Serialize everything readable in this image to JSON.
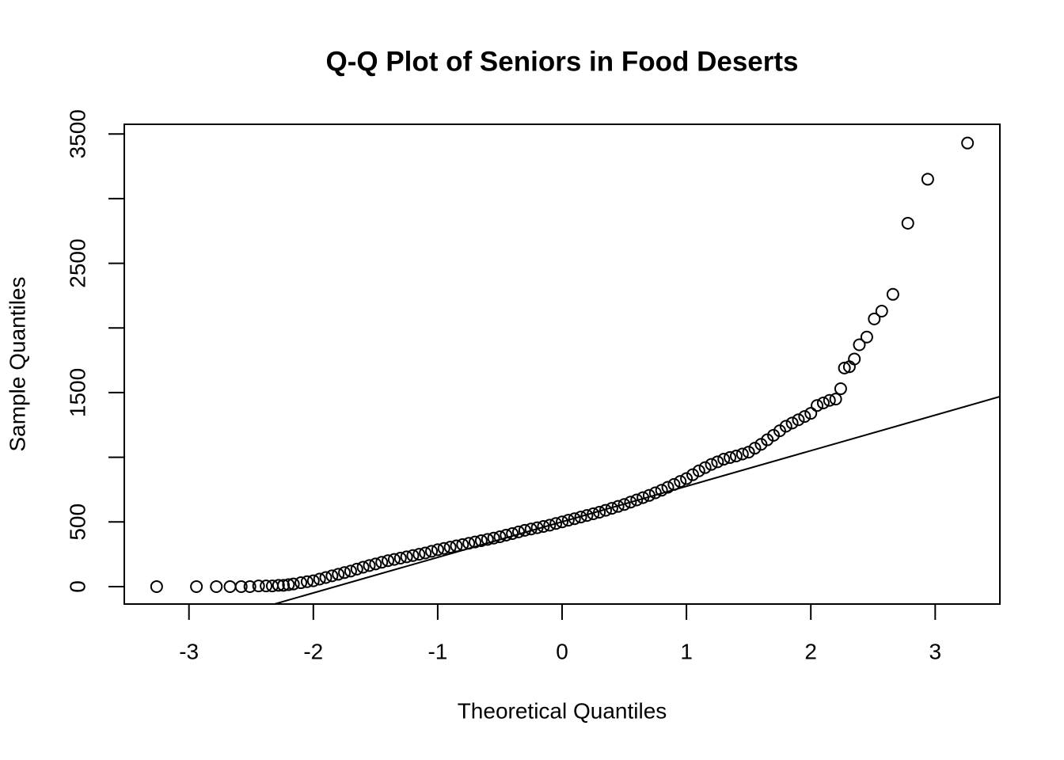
{
  "chart_data": {
    "type": "scatter",
    "title": "Q-Q Plot of Seniors in Food Deserts",
    "x_label": "Theoretical Quantiles",
    "y_label": "Sample Quantiles",
    "xlim": [
      -3.52,
      3.52
    ],
    "ylim": [
      -135,
      3575
    ],
    "xticks": [
      -3,
      -2,
      -1,
      0,
      1,
      2,
      3
    ],
    "yticks": [
      0,
      500,
      1500,
      2500,
      3500
    ],
    "yticks_unlabeled": [
      1000,
      2000,
      3000
    ],
    "color": "#000000",
    "x": [
      -3.26,
      -2.94,
      -2.78,
      -2.67,
      -2.58,
      -2.51,
      -2.44,
      -2.38,
      -2.33,
      -2.28,
      -2.24,
      -2.2,
      -2.16,
      -2.1,
      -2.05,
      -2.0,
      -1.95,
      -1.9,
      -1.85,
      -1.8,
      -1.75,
      -1.7,
      -1.65,
      -1.6,
      -1.55,
      -1.5,
      -1.45,
      -1.4,
      -1.35,
      -1.3,
      -1.25,
      -1.2,
      -1.15,
      -1.1,
      -1.05,
      -1.0,
      -0.95,
      -0.9,
      -0.85,
      -0.8,
      -0.75,
      -0.7,
      -0.65,
      -0.6,
      -0.55,
      -0.5,
      -0.45,
      -0.4,
      -0.35,
      -0.3,
      -0.25,
      -0.2,
      -0.15,
      -0.1,
      -0.05,
      0,
      0.05,
      0.1,
      0.15,
      0.2,
      0.25,
      0.3,
      0.35,
      0.4,
      0.45,
      0.5,
      0.55,
      0.6,
      0.65,
      0.7,
      0.75,
      0.8,
      0.85,
      0.9,
      0.95,
      1.0,
      1.05,
      1.1,
      1.15,
      1.2,
      1.25,
      1.3,
      1.35,
      1.4,
      1.45,
      1.5,
      1.55,
      1.6,
      1.65,
      1.7,
      1.75,
      1.8,
      1.85,
      1.9,
      1.95,
      2.0,
      2.05,
      2.1,
      2.15,
      2.2,
      2.24,
      2.27,
      2.31,
      2.35,
      2.39,
      2.45,
      2.51,
      2.57,
      2.66,
      2.78,
      2.94,
      3.26
    ],
    "y": [
      0,
      0,
      0,
      0,
      0,
      0,
      5,
      5,
      5,
      10,
      10,
      15,
      20,
      30,
      38,
      45,
      58,
      70,
      83,
      95,
      108,
      120,
      135,
      150,
      163,
      175,
      188,
      200,
      210,
      220,
      230,
      240,
      250,
      260,
      273,
      285,
      295,
      305,
      315,
      325,
      335,
      345,
      355,
      365,
      375,
      385,
      398,
      410,
      423,
      435,
      445,
      455,
      465,
      475,
      488,
      500,
      513,
      525,
      538,
      550,
      563,
      575,
      590,
      605,
      620,
      635,
      653,
      670,
      688,
      705,
      725,
      745,
      768,
      790,
      813,
      835,
      865,
      895,
      920,
      945,
      965,
      985,
      998,
      1010,
      1025,
      1040,
      1070,
      1100,
      1135,
      1170,
      1205,
      1240,
      1265,
      1290,
      1315,
      1340,
      1400,
      1420,
      1440,
      1450,
      1530,
      1690,
      1700,
      1760,
      1870,
      1930,
      2070,
      2130,
      2260,
      2810,
      3150,
      3430
    ],
    "reference_line": {
      "x": [
        -3.52,
        3.52
      ],
      "y": [
        -467,
        1469
      ]
    }
  }
}
